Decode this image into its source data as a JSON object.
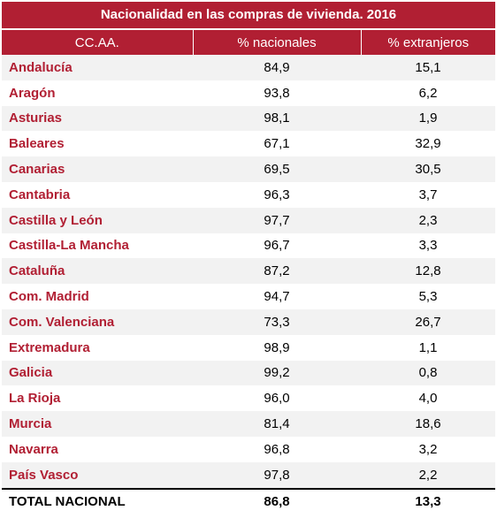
{
  "chart_data": {
    "type": "table",
    "title": "Nacionalidad en las compras de vivienda. 2016",
    "columns": [
      "CC.AA.",
      "% nacionales",
      "% extranjeros"
    ],
    "rows": [
      {
        "region": "Andalucía",
        "nacionales": "84,9",
        "extranjeros": "15,1"
      },
      {
        "region": "Aragón",
        "nacionales": "93,8",
        "extranjeros": "6,2"
      },
      {
        "region": "Asturias",
        "nacionales": "98,1",
        "extranjeros": "1,9"
      },
      {
        "region": "Baleares",
        "nacionales": "67,1",
        "extranjeros": "32,9"
      },
      {
        "region": "Canarias",
        "nacionales": "69,5",
        "extranjeros": "30,5"
      },
      {
        "region": "Cantabria",
        "nacionales": "96,3",
        "extranjeros": "3,7"
      },
      {
        "region": "Castilla y León",
        "nacionales": "97,7",
        "extranjeros": "2,3"
      },
      {
        "region": "Castilla-La Mancha",
        "nacionales": "96,7",
        "extranjeros": "3,3"
      },
      {
        "region": "Cataluña",
        "nacionales": "87,2",
        "extranjeros": "12,8"
      },
      {
        "region": "Com. Madrid",
        "nacionales": "94,7",
        "extranjeros": "5,3"
      },
      {
        "region": "Com. Valenciana",
        "nacionales": "73,3",
        "extranjeros": "26,7"
      },
      {
        "region": "Extremadura",
        "nacionales": "98,9",
        "extranjeros": "1,1"
      },
      {
        "region": "Galicia",
        "nacionales": "99,2",
        "extranjeros": "0,8"
      },
      {
        "region": "La Rioja",
        "nacionales": "96,0",
        "extranjeros": "4,0"
      },
      {
        "region": "Murcia",
        "nacionales": "81,4",
        "extranjeros": "18,6"
      },
      {
        "region": "Navarra",
        "nacionales": "96,8",
        "extranjeros": "3,2"
      },
      {
        "region": "País Vasco",
        "nacionales": "97,8",
        "extranjeros": "2,2"
      }
    ],
    "total": {
      "region": "TOTAL NACIONAL",
      "nacionales": "86,8",
      "extranjeros": "13,3"
    }
  },
  "colors": {
    "header_bg": "#b11f33",
    "region_text": "#b11f33",
    "stripe": "#f2f2f2"
  }
}
